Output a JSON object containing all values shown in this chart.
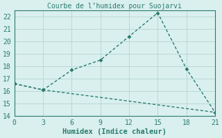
{
  "title": "Courbe de l’humidex pour Suojarvi",
  "xlabel": "Humidex (Indice chaleur)",
  "line1_x": [
    0,
    3,
    6,
    9,
    12,
    15,
    18,
    21
  ],
  "line1_y": [
    16.6,
    16.1,
    17.7,
    18.5,
    20.4,
    22.3,
    17.8,
    14.3
  ],
  "line2_x": [
    0,
    3,
    21
  ],
  "line2_y": [
    16.6,
    16.1,
    14.3
  ],
  "line_color": "#2a7a6e",
  "bg_color": "#d9f0ee",
  "grid_color": "#b8d8d4",
  "xlim": [
    0,
    21
  ],
  "ylim": [
    14,
    22.5
  ],
  "xticks": [
    0,
    3,
    6,
    9,
    12,
    15,
    18,
    21
  ],
  "yticks": [
    14,
    15,
    16,
    17,
    18,
    19,
    20,
    21,
    22
  ],
  "title_fontsize": 7,
  "label_fontsize": 7.5,
  "tick_fontsize": 7
}
